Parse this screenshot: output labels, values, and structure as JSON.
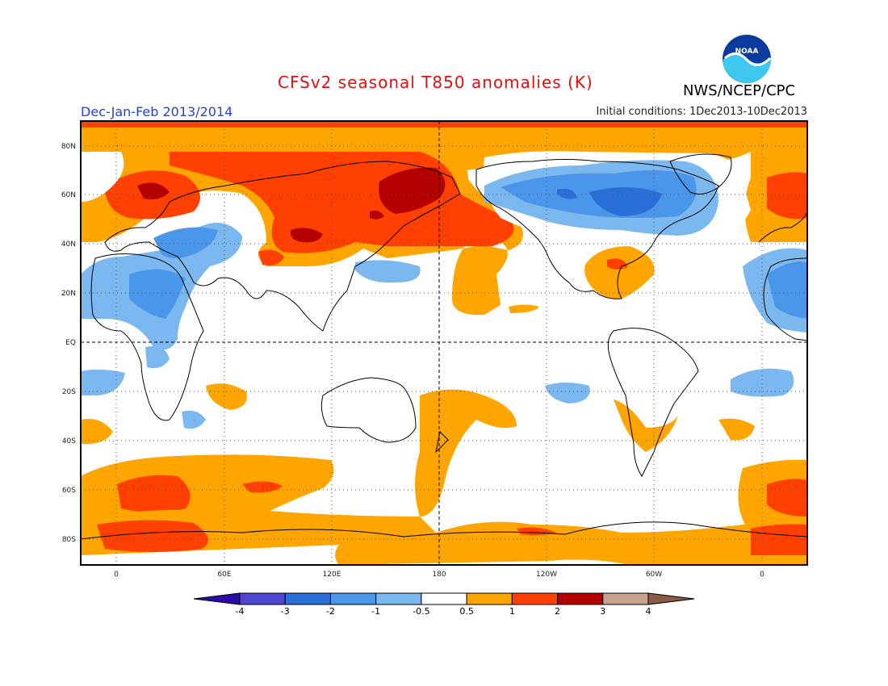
{
  "header": {
    "title": "CFSv2 seasonal T850 anomalies (K)",
    "agency": "NWS/NCEP/CPC",
    "logo_text": "NOAA",
    "season": "Dec-Jan-Feb 2013/2014",
    "initial_conditions": "Initial conditions: 1Dec2013-10Dec2013"
  },
  "map": {
    "projection": "equirectangular, central longitude 180",
    "lat_labels": [
      "80N",
      "60N",
      "40N",
      "20N",
      "EQ",
      "20S",
      "40S",
      "60S",
      "80S"
    ],
    "lon_labels": [
      "0",
      "60E",
      "120E",
      "180",
      "120W",
      "60W",
      "0"
    ],
    "grid": "dotted"
  },
  "colorbar": {
    "ticks": [
      "-4",
      "-3",
      "-2",
      "-1",
      "-0.5",
      "0.5",
      "1",
      "2",
      "3",
      "4"
    ],
    "colors": [
      "#2a0ba8",
      "#5046d2",
      "#2a6ed8",
      "#4a96ea",
      "#7cb8f0",
      "#ffffff",
      "#ffa500",
      "#ff4000",
      "#b40000",
      "#c8a090",
      "#8a5a48"
    ]
  }
}
